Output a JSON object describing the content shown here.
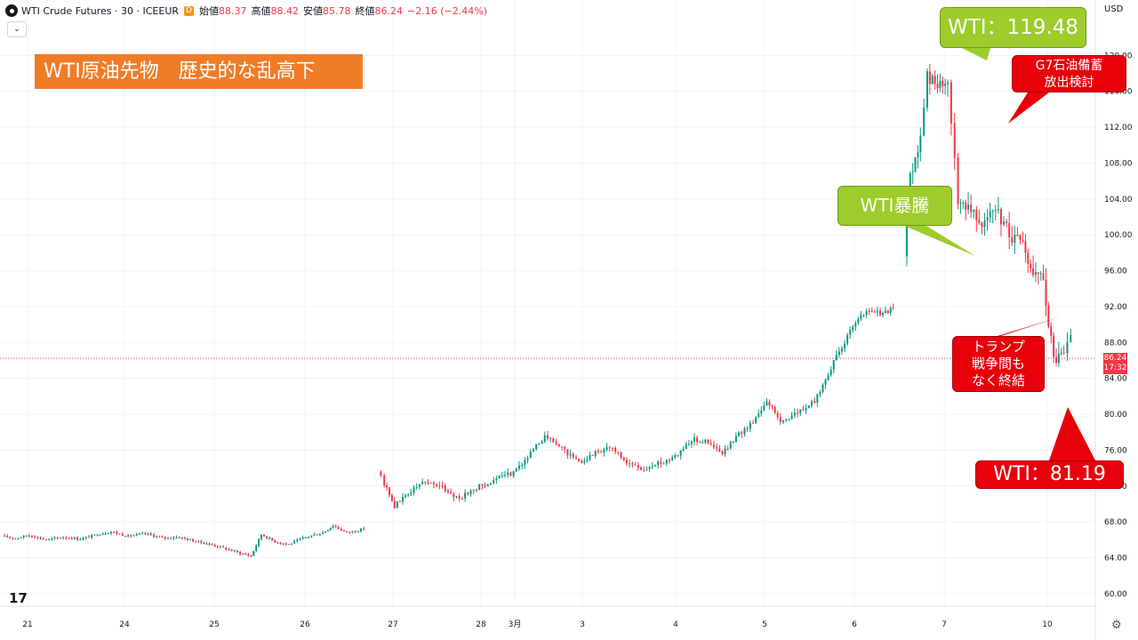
{
  "header": {
    "symbol": "WTI Crude Futures · 30 · ICEEUR",
    "badge": "D",
    "open_label": "始値",
    "open_value": "88.37",
    "high_label": "高値",
    "high_value": "88.42",
    "low_label": "安値",
    "low_value": "85.78",
    "close_label": "終値",
    "close_value": "86.24",
    "change": "−2.16 (−2.44%)",
    "collapse_icon": "chevron-down-icon"
  },
  "currency": "USD",
  "last_price": {
    "value": "86.24",
    "countdown": "17:32"
  },
  "annotations": {
    "title": "WTI原油先物　歴史的な乱高下",
    "peak": "WTI：119.48",
    "surge": "WTI暴騰",
    "g7": [
      "G7石油備蓄",
      "放出検討"
    ],
    "trump": [
      "トランプ",
      "戦争間も",
      "なく終結"
    ],
    "low": "WTI：81.19"
  },
  "colors": {
    "up": "#089981",
    "down": "#f23645",
    "annotation_green": "#9dcc2c",
    "annotation_red": "#e8000b",
    "title_orange": "#f07c27"
  },
  "chart_data": {
    "type": "candlestick",
    "y_ticks": [
      "60.00",
      "64.00",
      "68.00",
      "72.00",
      "76.00",
      "80.00",
      "84.00",
      "88.00",
      "92.00",
      "96.00",
      "100.00",
      "104.00",
      "108.00",
      "112.00",
      "116.00",
      "120.00"
    ],
    "x_ticks": [
      "21",
      "24",
      "25",
      "26",
      "27",
      "28",
      "3月",
      "3",
      "4",
      "5",
      "6",
      "7",
      "10"
    ],
    "ylim": [
      58.6,
      124.0
    ],
    "grid": true,
    "series": [
      {
        "segment": "Feb 21–28",
        "points": [
          [
            21.0,
            66.4
          ],
          [
            21.4,
            66.2
          ],
          [
            21.8,
            66.5
          ],
          [
            22.3,
            66.0
          ],
          [
            22.8,
            66.3
          ],
          [
            23.3,
            66.1
          ],
          [
            23.8,
            66.6
          ],
          [
            24.2,
            66.9
          ],
          [
            24.7,
            66.4
          ],
          [
            25.2,
            66.7
          ],
          [
            25.7,
            66.2
          ],
          [
            26.2,
            66.3
          ],
          [
            26.6,
            65.9
          ],
          [
            27.0,
            65.6
          ],
          [
            27.4,
            65.2
          ],
          [
            27.9,
            64.6
          ],
          [
            28.3,
            64.2
          ],
          [
            28.6,
            66.6
          ],
          [
            29.0,
            65.8
          ],
          [
            29.4,
            65.5
          ],
          [
            29.9,
            66.3
          ],
          [
            30.4,
            66.8
          ],
          [
            30.7,
            67.6
          ],
          [
            31.1,
            66.8
          ],
          [
            31.6,
            67.2
          ]
        ]
      },
      {
        "segment": "Mar 2–7",
        "points": [
          [
            32.0,
            73.6
          ],
          [
            32.2,
            72.3
          ],
          [
            32.5,
            69.8
          ],
          [
            32.9,
            71.2
          ],
          [
            33.4,
            72.6
          ],
          [
            33.9,
            71.8
          ],
          [
            34.4,
            70.6
          ],
          [
            34.9,
            71.8
          ],
          [
            35.4,
            72.6
          ],
          [
            35.9,
            73.4
          ],
          [
            36.4,
            75.2
          ],
          [
            36.9,
            77.6
          ],
          [
            37.4,
            76.2
          ],
          [
            37.9,
            74.6
          ],
          [
            38.3,
            75.6
          ],
          [
            38.8,
            76.4
          ],
          [
            39.3,
            74.6
          ],
          [
            39.8,
            73.8
          ],
          [
            40.3,
            74.6
          ],
          [
            40.8,
            75.6
          ],
          [
            41.2,
            77.2
          ],
          [
            41.6,
            77.0
          ],
          [
            42.1,
            75.6
          ],
          [
            42.5,
            77.4
          ],
          [
            43.0,
            79.2
          ],
          [
            43.4,
            81.6
          ],
          [
            43.8,
            79.2
          ],
          [
            44.3,
            80.2
          ],
          [
            44.8,
            81.4
          ],
          [
            45.2,
            84.6
          ],
          [
            45.6,
            87.6
          ],
          [
            46.0,
            90.2
          ],
          [
            46.4,
            91.6
          ],
          [
            46.8,
            91.2
          ],
          [
            47.1,
            91.8
          ]
        ]
      },
      {
        "segment": "Mar 8–10",
        "points": [
          [
            47.4,
            97.6
          ],
          [
            47.6,
            106.4
          ],
          [
            47.9,
            110.6
          ],
          [
            48.1,
            117.8
          ],
          [
            48.4,
            116.6
          ],
          [
            48.7,
            116.2
          ],
          [
            48.8,
            112.4
          ],
          [
            49.0,
            103.8
          ],
          [
            49.3,
            103.4
          ],
          [
            49.7,
            101.6
          ],
          [
            50.1,
            102.6
          ],
          [
            50.5,
            100.2
          ],
          [
            50.9,
            98.6
          ],
          [
            51.2,
            95.4
          ],
          [
            51.5,
            94.8
          ],
          [
            51.8,
            86.0
          ],
          [
            52.1,
            86.6
          ],
          [
            52.3,
            88.8
          ]
        ]
      }
    ]
  }
}
